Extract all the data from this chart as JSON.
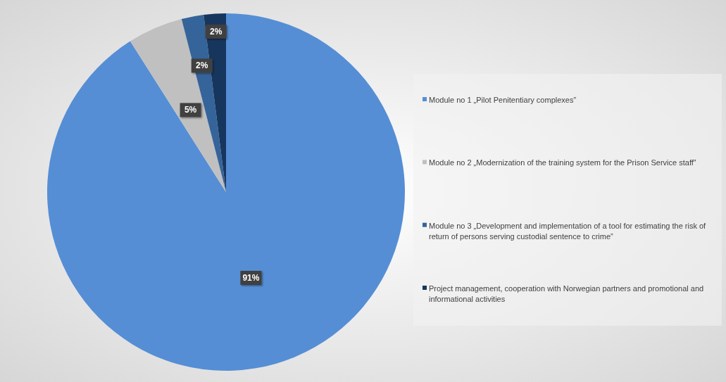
{
  "chart_data": {
    "type": "pie",
    "categories": [
      "Module no 1 „Pilot Penitentiary complexes”",
      "Module no 2 „Modernization of the training system for the Prison Service staff”",
      "Module no 3 „Development and implementation of a tool for estimating the risk of return of persons serving custodial sentence to crime”",
      "Project management, cooperation with Norwegian partners and promotional and informational activities"
    ],
    "values": [
      91,
      5,
      2,
      2
    ],
    "colors": [
      "#558ed5",
      "#c0c0c0",
      "#35649a",
      "#17365d"
    ],
    "value_labels": [
      "91%",
      "5%",
      "2%",
      "2%"
    ],
    "legend": "right"
  }
}
